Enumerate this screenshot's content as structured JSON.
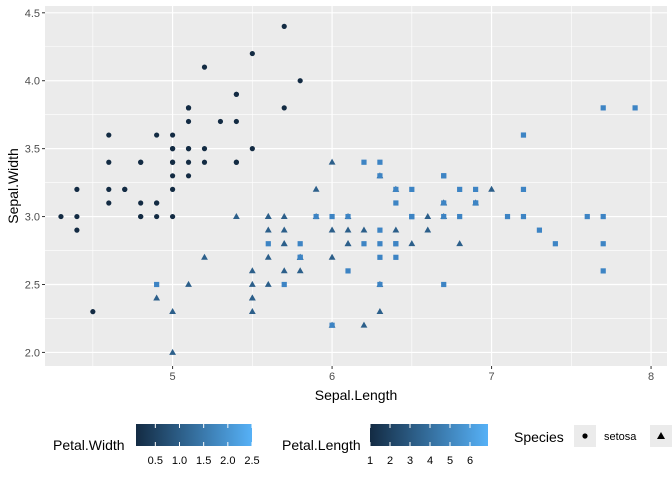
{
  "chart_data": {
    "type": "scatter",
    "xlabel": "Sepal.Length",
    "ylabel": "Sepal.Width",
    "xlim": [
      4.2,
      8.1
    ],
    "ylim": [
      1.9,
      4.55
    ],
    "x_ticks": [
      5,
      6,
      7,
      8
    ],
    "y_ticks": [
      2.0,
      2.5,
      3.0,
      3.5,
      4.0,
      4.5
    ],
    "x_tick_labels": [
      "5",
      "6",
      "7",
      "8"
    ],
    "y_tick_labels": [
      "2.0",
      "2.5",
      "3.0",
      "3.5",
      "4.0",
      "4.5"
    ],
    "grid": true,
    "legend_position": "bottom",
    "shape_legend": {
      "title": "Species",
      "entries": [
        {
          "label": "setosa",
          "shape": "circle"
        },
        {
          "label": "",
          "shape": "triangle"
        }
      ]
    },
    "color_legends": [
      {
        "title": "Petal.Width",
        "range": [
          0.1,
          2.5
        ],
        "ticks": [
          0.5,
          1.0,
          1.5,
          2.0,
          2.5
        ],
        "tick_labels": [
          "0.5",
          "1.0",
          "1.5",
          "2.0",
          "2.5"
        ]
      },
      {
        "title": "Petal.Length",
        "range": [
          1.0,
          6.9
        ],
        "ticks": [
          1,
          2,
          3,
          4,
          5,
          6
        ],
        "tick_labels": [
          "1",
          "2",
          "3",
          "4",
          "5",
          "6"
        ]
      }
    ],
    "colors": {
      "low": "#132b43",
      "high": "#56b1f7",
      "panel": "#ebebeb"
    },
    "series": [
      {
        "shape": "circle",
        "color": "#132b43",
        "points": [
          [
            5.1,
            3.5
          ],
          [
            4.9,
            3.0
          ],
          [
            4.7,
            3.2
          ],
          [
            4.6,
            3.1
          ],
          [
            5.0,
            3.6
          ],
          [
            5.4,
            3.9
          ],
          [
            4.6,
            3.4
          ],
          [
            5.0,
            3.4
          ],
          [
            4.4,
            2.9
          ],
          [
            4.9,
            3.1
          ],
          [
            5.4,
            3.7
          ],
          [
            4.8,
            3.4
          ],
          [
            4.8,
            3.0
          ],
          [
            4.3,
            3.0
          ],
          [
            5.8,
            4.0
          ],
          [
            5.7,
            4.4
          ],
          [
            5.4,
            3.9
          ],
          [
            5.1,
            3.5
          ],
          [
            5.7,
            3.8
          ],
          [
            5.1,
            3.8
          ],
          [
            5.4,
            3.4
          ],
          [
            5.1,
            3.7
          ],
          [
            4.6,
            3.6
          ],
          [
            5.1,
            3.3
          ],
          [
            4.8,
            3.4
          ],
          [
            5.0,
            3.0
          ],
          [
            5.0,
            3.4
          ],
          [
            5.2,
            3.5
          ],
          [
            5.2,
            3.4
          ],
          [
            4.7,
            3.2
          ],
          [
            4.8,
            3.1
          ],
          [
            5.4,
            3.4
          ],
          [
            5.2,
            4.1
          ],
          [
            5.5,
            4.2
          ],
          [
            4.9,
            3.1
          ],
          [
            5.0,
            3.2
          ],
          [
            5.5,
            3.5
          ],
          [
            4.9,
            3.6
          ],
          [
            4.4,
            3.0
          ],
          [
            5.1,
            3.4
          ],
          [
            5.0,
            3.5
          ],
          [
            4.5,
            2.3
          ],
          [
            4.4,
            3.2
          ],
          [
            5.0,
            3.5
          ],
          [
            5.1,
            3.8
          ],
          [
            4.8,
            3.0
          ],
          [
            5.1,
            3.8
          ],
          [
            4.6,
            3.2
          ],
          [
            5.3,
            3.7
          ],
          [
            5.0,
            3.3
          ]
        ]
      },
      {
        "shape": "triangle",
        "color": "#2c5f8a",
        "points": [
          [
            7.0,
            3.2
          ],
          [
            6.4,
            3.2
          ],
          [
            6.9,
            3.1
          ],
          [
            5.5,
            2.3
          ],
          [
            6.5,
            2.8
          ],
          [
            5.7,
            2.8
          ],
          [
            6.3,
            3.3
          ],
          [
            4.9,
            2.4
          ],
          [
            6.6,
            2.9
          ],
          [
            5.2,
            2.7
          ],
          [
            5.0,
            2.0
          ],
          [
            5.9,
            3.0
          ],
          [
            6.0,
            2.2
          ],
          [
            6.1,
            2.9
          ],
          [
            5.6,
            2.9
          ],
          [
            6.7,
            3.1
          ],
          [
            5.6,
            3.0
          ],
          [
            5.8,
            2.7
          ],
          [
            6.2,
            2.2
          ],
          [
            5.6,
            2.5
          ],
          [
            5.9,
            3.2
          ],
          [
            6.1,
            2.8
          ],
          [
            6.3,
            2.5
          ],
          [
            6.1,
            2.8
          ],
          [
            6.4,
            2.9
          ],
          [
            6.6,
            3.0
          ],
          [
            6.8,
            2.8
          ],
          [
            6.7,
            3.0
          ],
          [
            6.0,
            2.9
          ],
          [
            5.7,
            2.6
          ],
          [
            5.5,
            2.4
          ],
          [
            5.5,
            2.4
          ],
          [
            5.8,
            2.7
          ],
          [
            6.0,
            2.7
          ],
          [
            5.4,
            3.0
          ],
          [
            6.0,
            3.4
          ],
          [
            6.7,
            3.1
          ],
          [
            6.3,
            2.3
          ],
          [
            5.6,
            3.0
          ],
          [
            5.5,
            2.5
          ],
          [
            5.5,
            2.6
          ],
          [
            6.1,
            3.0
          ],
          [
            5.8,
            2.6
          ],
          [
            5.0,
            2.3
          ],
          [
            5.6,
            2.7
          ],
          [
            5.7,
            3.0
          ],
          [
            5.7,
            2.9
          ],
          [
            6.2,
            2.9
          ],
          [
            5.1,
            2.5
          ],
          [
            5.7,
            2.8
          ]
        ]
      },
      {
        "shape": "square",
        "color": "#3d84c4",
        "points": [
          [
            6.3,
            3.3
          ],
          [
            5.8,
            2.7
          ],
          [
            7.1,
            3.0
          ],
          [
            6.3,
            2.9
          ],
          [
            6.5,
            3.0
          ],
          [
            7.6,
            3.0
          ],
          [
            4.9,
            2.5
          ],
          [
            7.3,
            2.9
          ],
          [
            6.7,
            2.5
          ],
          [
            7.2,
            3.6
          ],
          [
            6.5,
            3.2
          ],
          [
            6.4,
            2.7
          ],
          [
            6.8,
            3.0
          ],
          [
            5.7,
            2.5
          ],
          [
            5.8,
            2.8
          ],
          [
            6.4,
            3.2
          ],
          [
            6.5,
            3.0
          ],
          [
            7.7,
            3.8
          ],
          [
            7.7,
            2.6
          ],
          [
            6.0,
            2.2
          ],
          [
            6.9,
            3.2
          ],
          [
            5.6,
            2.8
          ],
          [
            7.7,
            2.8
          ],
          [
            6.3,
            2.7
          ],
          [
            6.7,
            3.3
          ],
          [
            7.2,
            3.2
          ],
          [
            6.2,
            2.8
          ],
          [
            6.1,
            3.0
          ],
          [
            6.4,
            2.8
          ],
          [
            7.2,
            3.0
          ],
          [
            7.4,
            2.8
          ],
          [
            7.9,
            3.8
          ],
          [
            6.4,
            2.8
          ],
          [
            6.3,
            2.8
          ],
          [
            6.1,
            2.6
          ],
          [
            7.7,
            3.0
          ],
          [
            6.3,
            3.4
          ],
          [
            6.4,
            3.1
          ],
          [
            6.0,
            3.0
          ],
          [
            6.9,
            3.1
          ],
          [
            6.7,
            3.1
          ],
          [
            6.9,
            3.1
          ],
          [
            5.8,
            2.7
          ],
          [
            6.8,
            3.2
          ],
          [
            6.7,
            3.3
          ],
          [
            6.7,
            3.0
          ],
          [
            6.3,
            2.5
          ],
          [
            6.5,
            3.0
          ],
          [
            6.2,
            3.4
          ],
          [
            5.9,
            3.0
          ]
        ]
      }
    ]
  }
}
